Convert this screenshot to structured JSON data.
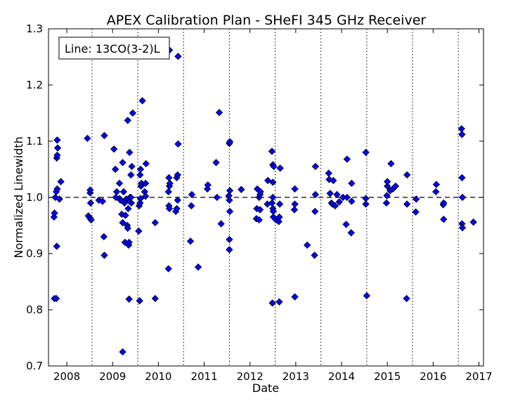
{
  "chart_data": {
    "type": "scatter",
    "title": "APEX Calibration Plan - SHeFI 345 GHz Receiver",
    "xlabel": "Date",
    "ylabel": "Normalized Linewidth",
    "annotation": "Line: 13CO(3-2)L",
    "xlim": [
      2007.6,
      2017.1
    ],
    "ylim": [
      0.7,
      1.3
    ],
    "x_ticks": [
      2008,
      2009,
      2010,
      2011,
      2012,
      2013,
      2014,
      2015,
      2016,
      2017
    ],
    "x_tick_labels": [
      "2008",
      "2009",
      "2010",
      "2011",
      "2012",
      "2013",
      "2014",
      "2015",
      "2016",
      "2017"
    ],
    "y_ticks": [
      0.7,
      0.8,
      0.9,
      1.0,
      1.1,
      1.2,
      1.3
    ],
    "y_tick_labels": [
      "0.7",
      "0.8",
      "0.9",
      "1.0",
      "1.1",
      "1.2",
      "1.3"
    ],
    "reference_line": 1.0,
    "campaign_dates": [
      2008.55,
      2009.55,
      2010.55,
      2011.55,
      2012.55,
      2013.55,
      2014.55,
      2015.55,
      2016.55
    ],
    "marker_color": "#0000ff",
    "grid": false,
    "points": [
      [
        2007.73,
        0.82
      ],
      [
        2007.77,
        0.82
      ],
      [
        2007.72,
        0.965
      ],
      [
        2007.73,
        0.972
      ],
      [
        2007.75,
        1.0
      ],
      [
        2007.78,
        0.913
      ],
      [
        2007.77,
        1.01
      ],
      [
        2007.79,
        1.015
      ],
      [
        2007.78,
        1.07
      ],
      [
        2007.79,
        1.075
      ],
      [
        2007.8,
        1.088
      ],
      [
        2007.79,
        1.102
      ],
      [
        2007.84,
        0.997
      ],
      [
        2007.87,
        1.028
      ],
      [
        2008.45,
        1.105
      ],
      [
        2008.47,
        0.967
      ],
      [
        2008.51,
        0.963
      ],
      [
        2008.52,
        0.99
      ],
      [
        2008.53,
        0.96
      ],
      [
        2008.51,
        1.008
      ],
      [
        2008.51,
        1.013
      ],
      [
        2008.7,
        0.995
      ],
      [
        2008.78,
        0.993
      ],
      [
        2008.81,
        0.93
      ],
      [
        2008.82,
        0.897
      ],
      [
        2008.82,
        1.11
      ],
      [
        2009.03,
        1.086
      ],
      [
        2009.06,
        1.05
      ],
      [
        2009.07,
        1.0
      ],
      [
        2009.09,
        1.01
      ],
      [
        2009.15,
        1.025
      ],
      [
        2009.15,
        0.998
      ],
      [
        2009.17,
        0.995
      ],
      [
        2009.2,
        0.97
      ],
      [
        2009.22,
        0.955
      ],
      [
        2009.24,
        1.01
      ],
      [
        2009.26,
        0.99
      ],
      [
        2009.28,
        0.968
      ],
      [
        2009.3,
        0.997
      ],
      [
        2009.27,
        0.92
      ],
      [
        2009.32,
        0.95
      ],
      [
        2009.33,
        0.945
      ],
      [
        2009.35,
        0.915
      ],
      [
        2009.36,
        0.92
      ],
      [
        2009.34,
        0.98
      ],
      [
        2009.38,
        1.0
      ],
      [
        2009.37,
        0.993
      ],
      [
        2009.4,
        1.0
      ],
      [
        2009.41,
        0.99
      ],
      [
        2009.33,
        1.137
      ],
      [
        2009.37,
        1.08
      ],
      [
        2009.4,
        1.04
      ],
      [
        2009.42,
        1.055
      ],
      [
        2009.44,
        1.15
      ],
      [
        2009.22,
        1.062
      ],
      [
        2009.22,
        0.725
      ],
      [
        2009.36,
        0.819
      ],
      [
        2009.57,
        0.94
      ],
      [
        2009.59,
        0.816
      ],
      [
        2009.58,
        0.985
      ],
      [
        2009.6,
        0.99
      ],
      [
        2009.61,
        0.998
      ],
      [
        2009.62,
        1.02
      ],
      [
        2009.63,
        1.025
      ],
      [
        2009.6,
        1.04
      ],
      [
        2009.61,
        1.05
      ],
      [
        2009.65,
        1.172
      ],
      [
        2009.7,
        1.01
      ],
      [
        2009.72,
        1.025
      ],
      [
        2009.73,
        1.06
      ],
      [
        2009.72,
        1.002
      ],
      [
        2009.93,
        0.955
      ],
      [
        2009.93,
        0.82
      ],
      [
        2010.22,
        0.873
      ],
      [
        2010.23,
        0.985
      ],
      [
        2010.24,
        0.98
      ],
      [
        2010.22,
        1.01
      ],
      [
        2010.24,
        1.02
      ],
      [
        2010.25,
        1.025
      ],
      [
        2010.23,
        1.035
      ],
      [
        2010.24,
        1.262
      ],
      [
        2010.38,
        0.975
      ],
      [
        2010.4,
        0.98
      ],
      [
        2010.42,
        0.995
      ],
      [
        2010.4,
        1.035
      ],
      [
        2010.42,
        1.04
      ],
      [
        2010.43,
        1.095
      ],
      [
        2010.43,
        1.251
      ],
      [
        2010.7,
        0.922
      ],
      [
        2010.72,
        0.985
      ],
      [
        2010.73,
        1.005
      ],
      [
        2010.87,
        0.876
      ],
      [
        2011.07,
        1.015
      ],
      [
        2011.08,
        1.022
      ],
      [
        2011.26,
        1.062
      ],
      [
        2011.28,
        1.0
      ],
      [
        2011.33,
        1.151
      ],
      [
        2011.37,
        0.953
      ],
      [
        2011.55,
        0.907
      ],
      [
        2011.55,
        0.925
      ],
      [
        2011.56,
        0.975
      ],
      [
        2011.55,
        0.995
      ],
      [
        2011.54,
        1.003
      ],
      [
        2011.56,
        1.012
      ],
      [
        2011.55,
        1.096
      ],
      [
        2011.56,
        1.099
      ],
      [
        2011.81,
        1.014
      ],
      [
        2012.14,
        0.962
      ],
      [
        2012.15,
        0.98
      ],
      [
        2012.16,
        1.015
      ],
      [
        2012.2,
        0.96
      ],
      [
        2012.22,
        0.978
      ],
      [
        2012.2,
        1.0
      ],
      [
        2012.22,
        1.005
      ],
      [
        2012.23,
        1.01
      ],
      [
        2012.38,
        0.988
      ],
      [
        2012.39,
        1.03
      ],
      [
        2012.48,
        1.082
      ],
      [
        2012.5,
        1.058
      ],
      [
        2012.52,
        1.055
      ],
      [
        2012.5,
        1.027
      ],
      [
        2012.5,
        1.0
      ],
      [
        2012.48,
        0.99
      ],
      [
        2012.5,
        0.98
      ],
      [
        2012.51,
        0.975
      ],
      [
        2012.51,
        0.965
      ],
      [
        2012.49,
        0.812
      ],
      [
        2012.57,
        0.96
      ],
      [
        2012.63,
        0.957
      ],
      [
        2012.64,
        0.965
      ],
      [
        2012.65,
        0.988
      ],
      [
        2012.66,
        1.052
      ],
      [
        2012.64,
        0.814
      ],
      [
        2012.97,
        0.978
      ],
      [
        2012.98,
        0.988
      ],
      [
        2012.98,
        1.015
      ],
      [
        2012.98,
        0.823
      ],
      [
        2013.25,
        0.915
      ],
      [
        2013.41,
        0.897
      ],
      [
        2013.42,
        0.975
      ],
      [
        2013.43,
        1.005
      ],
      [
        2013.43,
        1.055
      ],
      [
        2013.72,
        1.043
      ],
      [
        2013.73,
        1.032
      ],
      [
        2013.75,
        1.007
      ],
      [
        2013.78,
        0.99
      ],
      [
        2013.8,
        0.988
      ],
      [
        2013.82,
        1.03
      ],
      [
        2013.86,
        0.985
      ],
      [
        2013.9,
        1.005
      ],
      [
        2013.95,
        0.992
      ],
      [
        2014.03,
        1.0
      ],
      [
        2014.1,
        0.952
      ],
      [
        2014.12,
        1.068
      ],
      [
        2014.12,
        1.0
      ],
      [
        2014.21,
        0.937
      ],
      [
        2014.22,
        0.993
      ],
      [
        2014.22,
        1.025
      ],
      [
        2014.53,
        0.998
      ],
      [
        2014.53,
        0.988
      ],
      [
        2014.55,
        0.825
      ],
      [
        2014.53,
        1.08
      ],
      [
        2014.98,
        0.99
      ],
      [
        2014.99,
        1.003
      ],
      [
        2015.0,
        1.02
      ],
      [
        2015.0,
        1.028
      ],
      [
        2015.06,
        1.012
      ],
      [
        2015.08,
        1.06
      ],
      [
        2015.12,
        1.015
      ],
      [
        2015.18,
        1.02
      ],
      [
        2015.42,
        0.82
      ],
      [
        2015.43,
        0.988
      ],
      [
        2015.43,
        1.04
      ],
      [
        2015.62,
        0.974
      ],
      [
        2015.63,
        0.997
      ],
      [
        2016.06,
        1.01
      ],
      [
        2016.07,
        1.023
      ],
      [
        2016.22,
        0.987
      ],
      [
        2016.23,
        0.99
      ],
      [
        2016.23,
        0.961
      ],
      [
        2016.62,
        1.122
      ],
      [
        2016.63,
        1.112
      ],
      [
        2016.63,
        1.035
      ],
      [
        2016.64,
        1.0
      ],
      [
        2016.63,
        0.953
      ],
      [
        2016.64,
        0.946
      ],
      [
        2016.88,
        0.956
      ]
    ]
  }
}
